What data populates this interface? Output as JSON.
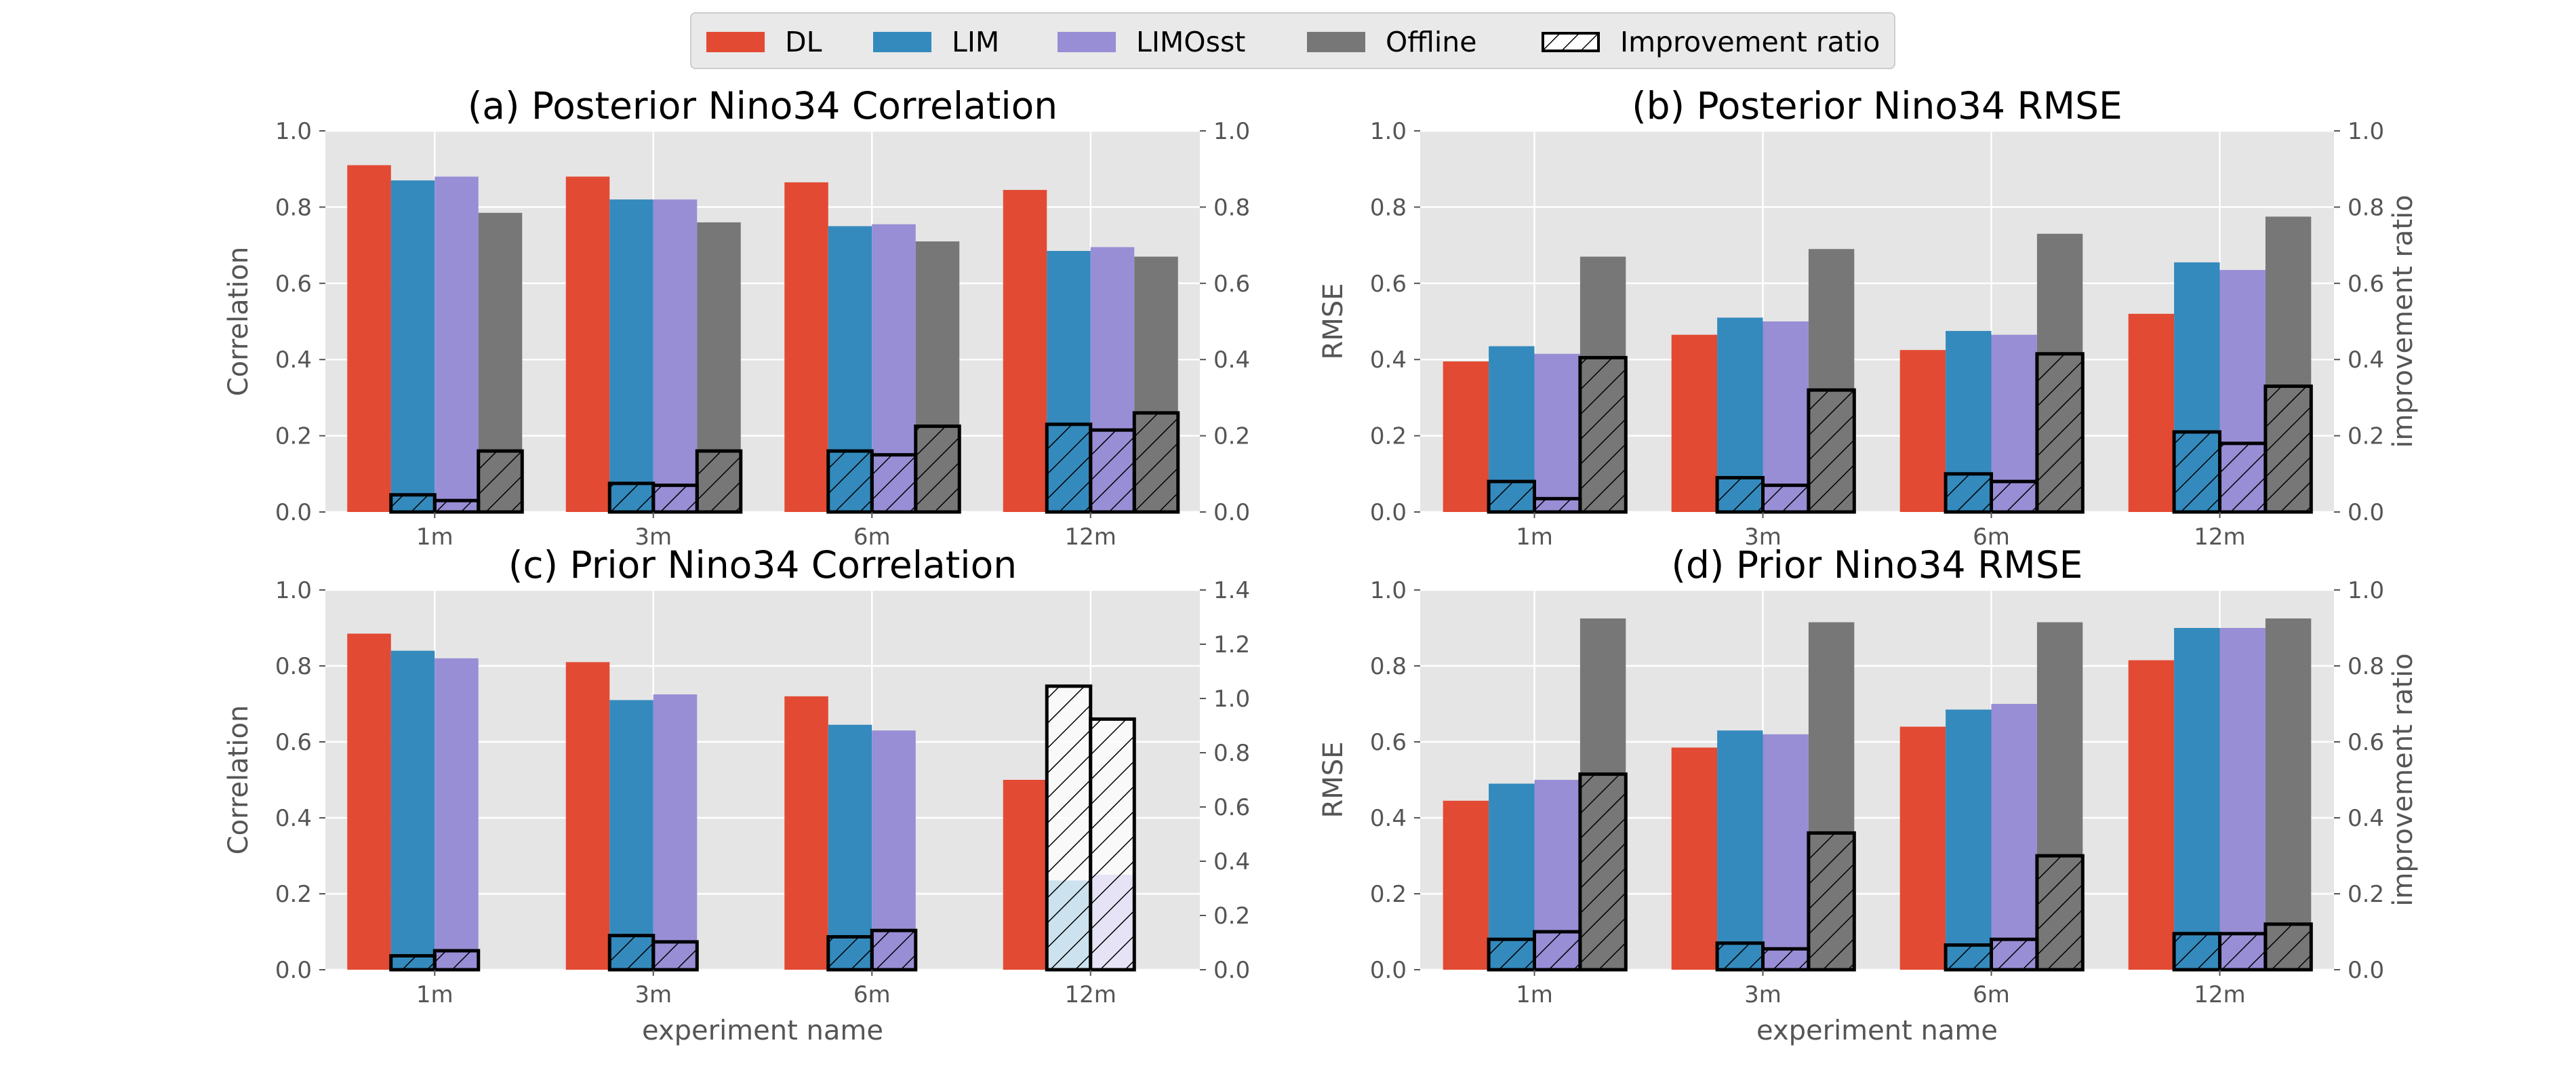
{
  "legend": {
    "items": [
      {
        "label": "DL",
        "color": "#E24A33"
      },
      {
        "label": "LIM",
        "color": "#348ABD"
      },
      {
        "label": "LIMOsst",
        "color": "#988ED5"
      },
      {
        "label": "Offline",
        "color": "#777777"
      },
      {
        "label": "Improvement ratio",
        "color": "#FFFFFF",
        "hatched": true
      }
    ]
  },
  "colors": {
    "DL": "#E24A33",
    "LIM": "#348ABD",
    "LIMOsst": "#988ED5",
    "Offline": "#777777",
    "plot_bg": "#E5E5E5",
    "grid": "#FFFFFF",
    "text": "#555555",
    "title": "#000000"
  },
  "chart_data": [
    {
      "type": "bar",
      "title": "(a) Posterior Nino34 Correlation",
      "xlabel": "",
      "ylabel": "Correlation",
      "y2label": "",
      "categories": [
        "1m",
        "3m",
        "6m",
        "12m"
      ],
      "ylim": [
        0,
        1.0
      ],
      "y2lim": [
        0,
        1.0
      ],
      "yticks": [
        "0.0",
        "0.2",
        "0.4",
        "0.6",
        "0.8",
        "1.0"
      ],
      "y2ticks": [
        "0.0",
        "0.2",
        "0.4",
        "0.6",
        "0.8",
        "1.0"
      ],
      "grid": true,
      "series": [
        {
          "name": "DL",
          "values": [
            0.91,
            0.88,
            0.865,
            0.845
          ]
        },
        {
          "name": "LIM",
          "values": [
            0.87,
            0.82,
            0.75,
            0.685
          ]
        },
        {
          "name": "LIMOsst",
          "values": [
            0.88,
            0.82,
            0.755,
            0.695
          ]
        },
        {
          "name": "Offline",
          "values": [
            0.785,
            0.76,
            0.71,
            0.67
          ]
        }
      ],
      "improvement_ratio": [
        {
          "name": "LIM",
          "values": [
            0.045,
            0.075,
            0.16,
            0.23
          ]
        },
        {
          "name": "LIMOsst",
          "values": [
            0.03,
            0.07,
            0.15,
            0.215
          ]
        },
        {
          "name": "Offline",
          "values": [
            0.16,
            0.16,
            0.225,
            0.26
          ]
        }
      ]
    },
    {
      "type": "bar",
      "title": "(b) Posterior Nino34 RMSE",
      "xlabel": "",
      "ylabel": "RMSE",
      "y2label": "improvement ratio",
      "categories": [
        "1m",
        "3m",
        "6m",
        "12m"
      ],
      "ylim": [
        0,
        1.0
      ],
      "y2lim": [
        0,
        1.0
      ],
      "yticks": [
        "0.0",
        "0.2",
        "0.4",
        "0.6",
        "0.8",
        "1.0"
      ],
      "y2ticks": [
        "0.0",
        "0.2",
        "0.4",
        "0.6",
        "0.8",
        "1.0"
      ],
      "grid": true,
      "series": [
        {
          "name": "DL",
          "values": [
            0.395,
            0.465,
            0.425,
            0.52
          ]
        },
        {
          "name": "LIM",
          "values": [
            0.435,
            0.51,
            0.475,
            0.655
          ]
        },
        {
          "name": "LIMOsst",
          "values": [
            0.415,
            0.5,
            0.465,
            0.635
          ]
        },
        {
          "name": "Offline",
          "values": [
            0.67,
            0.69,
            0.73,
            0.775
          ]
        }
      ],
      "improvement_ratio": [
        {
          "name": "LIM",
          "values": [
            0.08,
            0.09,
            0.1,
            0.21
          ]
        },
        {
          "name": "LIMOsst",
          "values": [
            0.035,
            0.07,
            0.08,
            0.18
          ]
        },
        {
          "name": "Offline",
          "values": [
            0.405,
            0.32,
            0.415,
            0.33
          ]
        }
      ]
    },
    {
      "type": "bar",
      "title": "(c) Prior Nino34 Correlation",
      "xlabel": "experiment name",
      "ylabel": "Correlation",
      "y2label": "",
      "categories": [
        "1m",
        "3m",
        "6m",
        "12m"
      ],
      "ylim": [
        0,
        1.0
      ],
      "y2lim": [
        0,
        1.5
      ],
      "yticks": [
        "0.0",
        "0.2",
        "0.4",
        "0.6",
        "0.8",
        "1.0"
      ],
      "y2ticks": [
        "0.0",
        "0.2",
        "0.4",
        "0.6",
        "0.8",
        "1.0",
        "1.2",
        "1.4"
      ],
      "grid": true,
      "series": [
        {
          "name": "DL",
          "values": [
            0.885,
            0.81,
            0.72,
            0.5
          ]
        },
        {
          "name": "LIM",
          "values": [
            0.84,
            0.71,
            0.645,
            0.235
          ]
        },
        {
          "name": "LIMOsst",
          "values": [
            0.82,
            0.725,
            0.63,
            0.25
          ]
        },
        {
          "name": "Offline",
          "values": [
            0.0,
            0.0,
            0.0,
            0.0
          ]
        }
      ],
      "improvement_ratio": [
        {
          "name": "LIM",
          "values": [
            0.055,
            0.135,
            0.13,
            1.12
          ]
        },
        {
          "name": "LIMOsst",
          "values": [
            0.075,
            0.11,
            0.155,
            0.99
          ]
        },
        {
          "name": "Offline",
          "values": [
            0.0,
            0.0,
            0.0,
            0.0
          ]
        }
      ]
    },
    {
      "type": "bar",
      "title": "(d) Prior Nino34 RMSE",
      "xlabel": "experiment name",
      "ylabel": "RMSE",
      "y2label": "improvement ratio",
      "categories": [
        "1m",
        "3m",
        "6m",
        "12m"
      ],
      "ylim": [
        0,
        1.0
      ],
      "y2lim": [
        0,
        1.0
      ],
      "yticks": [
        "0.0",
        "0.2",
        "0.4",
        "0.6",
        "0.8",
        "1.0"
      ],
      "y2ticks": [
        "0.0",
        "0.2",
        "0.4",
        "0.6",
        "0.8",
        "1.0"
      ],
      "grid": true,
      "series": [
        {
          "name": "DL",
          "values": [
            0.445,
            0.585,
            0.64,
            0.815
          ]
        },
        {
          "name": "LIM",
          "values": [
            0.49,
            0.63,
            0.685,
            0.9
          ]
        },
        {
          "name": "LIMOsst",
          "values": [
            0.5,
            0.62,
            0.7,
            0.9
          ]
        },
        {
          "name": "Offline",
          "values": [
            0.925,
            0.915,
            0.915,
            0.925
          ]
        }
      ],
      "improvement_ratio": [
        {
          "name": "LIM",
          "values": [
            0.08,
            0.07,
            0.065,
            0.095
          ]
        },
        {
          "name": "LIMOsst",
          "values": [
            0.1,
            0.055,
            0.08,
            0.095
          ]
        },
        {
          "name": "Offline",
          "values": [
            0.515,
            0.36,
            0.3,
            0.12
          ]
        }
      ]
    }
  ]
}
